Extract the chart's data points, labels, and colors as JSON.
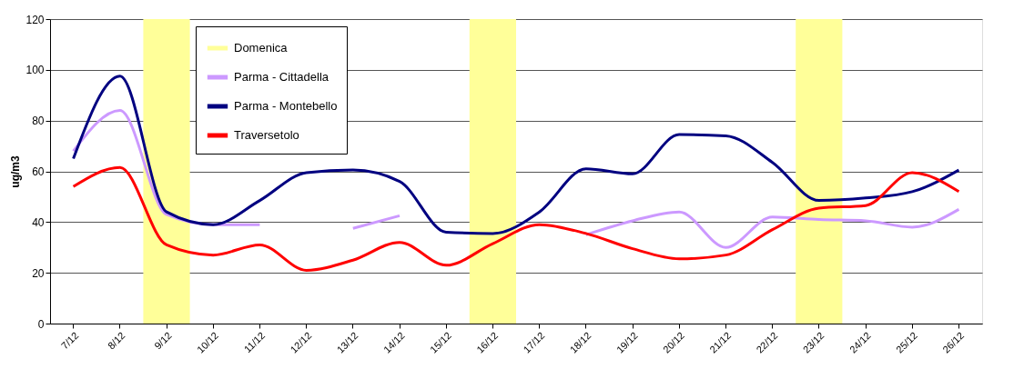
{
  "chart_data": {
    "type": "line",
    "ylabel": "ug/m3",
    "categories": [
      "7/12",
      "8/12",
      "9/12",
      "10/12",
      "11/12",
      "12/12",
      "13/12",
      "14/12",
      "15/12",
      "16/12",
      "17/12",
      "18/12",
      "19/12",
      "20/12",
      "21/12",
      "22/12",
      "23/12",
      "24/12",
      "25/12",
      "26/12"
    ],
    "series": [
      {
        "name": "Domenica",
        "type": "bar",
        "color": "#ffff99",
        "values": [
          null,
          null,
          120,
          null,
          null,
          null,
          null,
          null,
          null,
          120,
          null,
          null,
          null,
          null,
          null,
          null,
          120,
          null,
          null,
          null
        ]
      },
      {
        "name": "Parma - Cittadella",
        "color": "#cc99ff",
        "values": [
          68,
          84,
          43,
          39,
          39,
          null,
          37.5,
          42.5,
          null,
          null,
          null,
          35,
          40.5,
          44,
          30,
          42,
          41,
          40.5,
          38,
          45
        ]
      },
      {
        "name": "Parma - Montebello",
        "color": "#000080",
        "values": [
          65,
          97.5,
          44,
          39,
          48.5,
          59.5,
          60.5,
          56,
          36,
          35.5,
          44,
          61,
          59,
          74.5,
          74,
          63.5,
          48.5,
          49.5,
          52,
          60.5
        ]
      },
      {
        "name": "Traversetolo",
        "color": "#ff0000",
        "values": [
          54,
          61.5,
          31,
          27,
          31,
          21,
          25,
          32,
          23,
          31.5,
          39,
          35.5,
          29.5,
          25.5,
          27,
          37,
          45.5,
          46.5,
          59.5,
          52
        ]
      }
    ],
    "ylim": [
      0,
      120
    ],
    "yticks": [
      0,
      20,
      40,
      60,
      80,
      100,
      120
    ],
    "grid": "y",
    "legend": "top left"
  }
}
